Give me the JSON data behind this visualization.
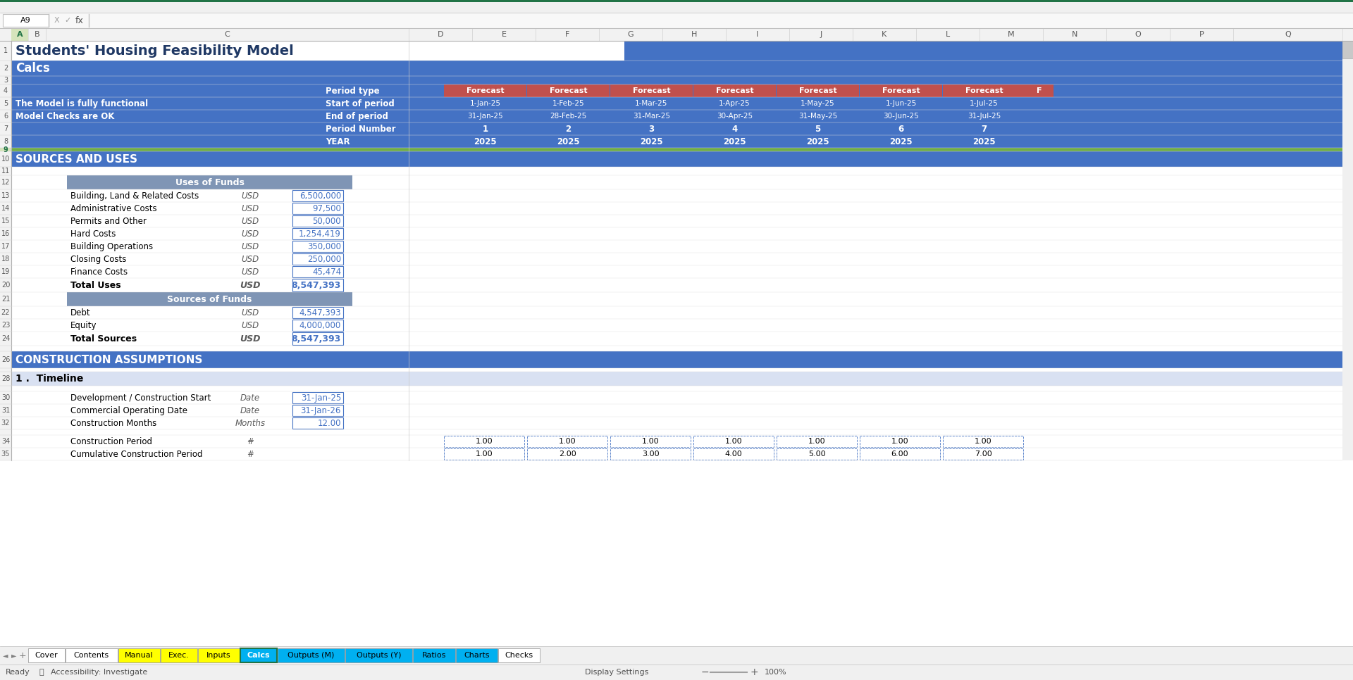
{
  "title_text": "Students' Housing Feasibility Model",
  "sheet_name": "Calcs",
  "bg_blue": "#4472C4",
  "bg_steel": "#7F95B5",
  "bg_white": "#FFFFFF",
  "bg_light_gray": "#F2F2F2",
  "text_blue_dark": "#1F3864",
  "text_white": "#FFFFFF",
  "text_black": "#000000",
  "text_blue_input": "#4472C4",
  "forecast_header_color": "#C0504D",
  "green_bar_color": "#217346",
  "section_header_color": "#4472C4",
  "timeline_row_color": "#D9E1F2",
  "cell_ref": "A9",
  "period_labels": [
    "Forecast",
    "Forecast",
    "Forecast",
    "Forecast",
    "Forecast",
    "Forecast",
    "Forecast"
  ],
  "start_of_period": [
    "1-Jan-25",
    "1-Feb-25",
    "1-Mar-25",
    "1-Apr-25",
    "1-May-25",
    "1-Jun-25",
    "1-Jul-25"
  ],
  "end_of_period": [
    "31-Jan-25",
    "28-Feb-25",
    "31-Mar-25",
    "30-Apr-25",
    "31-May-25",
    "30-Jun-25",
    "31-Jul-25"
  ],
  "period_numbers": [
    "1",
    "2",
    "3",
    "4",
    "5",
    "6",
    "7"
  ],
  "years": [
    "2025",
    "2025",
    "2025",
    "2025",
    "2025",
    "2025",
    "2025"
  ],
  "uses_items": [
    [
      "Building, Land & Related Costs",
      "USD",
      "6,500,000"
    ],
    [
      "Administrative Costs",
      "USD",
      "97,500"
    ],
    [
      "Permits and Other",
      "USD",
      "50,000"
    ],
    [
      "Hard Costs",
      "USD",
      "1,254,419"
    ],
    [
      "Building Operations",
      "USD",
      "350,000"
    ],
    [
      "Closing Costs",
      "USD",
      "250,000"
    ],
    [
      "Finance Costs",
      "USD",
      "45,474"
    ]
  ],
  "total_uses_label": "Total Uses",
  "total_uses_value": "8,547,393",
  "sources_items": [
    [
      "Debt",
      "USD",
      "4,547,393"
    ],
    [
      "Equity",
      "USD",
      "4,000,000"
    ]
  ],
  "total_sources_label": "Total Sources",
  "total_sources_value": "8,547,393",
  "timeline_items": [
    [
      "Development / Construction Start",
      "Date",
      "31-Jan-25"
    ],
    [
      "Commercial Operating Date",
      "Date",
      "31-Jan-26"
    ],
    [
      "Construction Months",
      "Months",
      "12.00"
    ]
  ],
  "cp_row34_values": [
    "1.00",
    "1.00",
    "1.00",
    "1.00",
    "1.00",
    "1.00",
    "1.00"
  ],
  "cp_row35_values": [
    "1.00",
    "2.00",
    "3.00",
    "4.00",
    "5.00",
    "6.00",
    "7.00"
  ],
  "tab_names": [
    "Cover",
    "Contents",
    "Manual",
    "Exec.",
    "Inputs",
    "Calcs",
    "Outputs (M)",
    "Outputs (Y)",
    "Ratios",
    "Charts",
    "Checks"
  ],
  "tab_colors": [
    "#FFFFFF",
    "#FFFFFF",
    "#FFFF00",
    "#FFFF00",
    "#FFFF00",
    "#00B0F0",
    "#00B0F0",
    "#00B0F0",
    "#00B0F0",
    "#00B0F0",
    "#FFFFFF"
  ],
  "tab_text_colors": [
    "#000000",
    "#000000",
    "#000000",
    "#000000",
    "#000000",
    "#FFFFFF",
    "#000000",
    "#000000",
    "#000000",
    "#000000",
    "#000000"
  ],
  "active_tab": "Calcs"
}
